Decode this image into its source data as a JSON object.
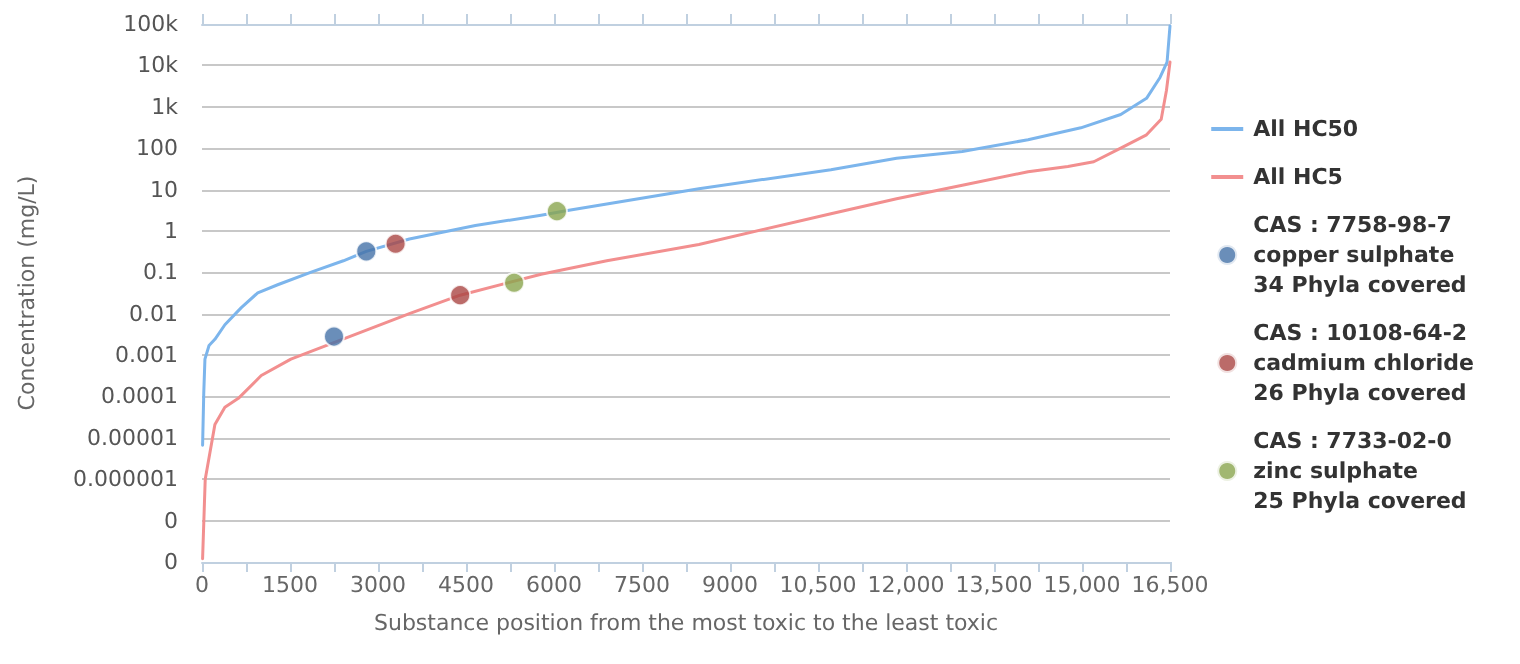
{
  "chart_data": {
    "type": "line",
    "xlabel": "Substance position from the most toxic to the least toxic",
    "ylabel": "Concentration (mg/L)",
    "log": "y",
    "grid": "y",
    "legend": "right",
    "marker": "none",
    "line_style": "solid",
    "xlim": [
      0,
      16500
    ],
    "xticks": [
      0,
      {
        "value": 750,
        "label": null
      },
      1500,
      {
        "value": 2250,
        "label": null
      },
      3000,
      {
        "value": 3750,
        "label": null
      },
      4500,
      {
        "value": 5250,
        "label": null
      },
      6000,
      {
        "value": 6750,
        "label": null
      },
      7500,
      {
        "value": 8250,
        "label": null
      },
      9000,
      {
        "value": 9750,
        "label": null
      },
      {
        "value": 10500,
        "label": "10,500"
      },
      {
        "value": 11250,
        "label": null
      },
      {
        "value": 12000,
        "label": "12,000"
      },
      {
        "value": 12750,
        "label": null
      },
      {
        "value": 13500,
        "label": "13,500"
      },
      {
        "value": 14250,
        "label": null
      },
      {
        "value": 15000,
        "label": "15,000"
      },
      {
        "value": 15750,
        "label": null
      },
      {
        "value": 16500,
        "label": "16,500"
      }
    ],
    "ylim": [
      1e-08,
      100000
    ],
    "yticks": [
      {
        "value": 1e-08,
        "label": "0"
      },
      {
        "value": 1e-07,
        "label": "0"
      },
      {
        "value": 1e-06,
        "label": "0.000001"
      },
      {
        "value": 1e-05,
        "label": "0.00001"
      },
      0.0001,
      0.001,
      0.01,
      0.1,
      1,
      10,
      100,
      {
        "value": 1000,
        "label": "1k"
      },
      {
        "value": 10000,
        "label": "10k"
      },
      {
        "value": 100000,
        "label": "100k"
      }
    ],
    "series": [
      {
        "name": "All HC50",
        "color": "#7cb5ec",
        "x": [
          10,
          30,
          50,
          120,
          220,
          390,
          670,
          950,
          1290,
          1850,
          2410,
          2800,
          3535,
          4660,
          5780,
          6230,
          8470,
          10720,
          11840,
          12960,
          14080,
          14980,
          15660,
          16100,
          16330,
          16450,
          16500
        ],
        "values": [
          6.6e-06,
          0.00012,
          0.0008,
          0.0017,
          0.0024,
          0.0054,
          0.014,
          0.032,
          0.05,
          0.1,
          0.19,
          0.32,
          0.64,
          1.35,
          2.4,
          3.1,
          10.5,
          30,
          57,
          83,
          160,
          310,
          650,
          1600,
          5100,
          12000,
          90000
        ]
      },
      {
        "name": "All HC5",
        "color": "#f28f8f",
        "x": [
          10,
          55,
          220,
          390,
          620,
          1010,
          1515,
          3535,
          4400,
          5780,
          6900,
          8470,
          10720,
          11840,
          12960,
          14080,
          14760,
          15200,
          15660,
          16100,
          16350,
          16440,
          16500
        ],
        "values": [
          1.2e-08,
          1e-06,
          2.1e-05,
          5.5e-05,
          9e-05,
          0.00032,
          0.0008,
          0.01,
          0.028,
          0.09,
          0.19,
          0.47,
          2.6,
          6,
          12.7,
          27,
          36,
          47,
          100,
          210,
          500,
          2500,
          12000
        ]
      },
      {
        "name": "CAS : 7758-98-7\ncopper sulphate\n34 Phyla covered",
        "type": "scatter",
        "marker": "circle",
        "color": "#4572a7",
        "x": [
          2800,
          2250
        ],
        "values": [
          0.32,
          0.0028
        ]
      },
      {
        "name": "CAS : 10108-64-2\ncadmium chloride\n26 Phyla covered",
        "type": "scatter",
        "marker": "circle",
        "color": "#aa4643",
        "x": [
          3300,
          4400
        ],
        "values": [
          0.49,
          0.028
        ]
      },
      {
        "name": "CAS : 7733-02-0\nzinc sulphate\n25 Phyla covered",
        "type": "scatter",
        "marker": "circle",
        "color": "#89a54e",
        "x": [
          6050,
          5320
        ],
        "values": [
          3.0,
          0.056
        ]
      }
    ]
  }
}
